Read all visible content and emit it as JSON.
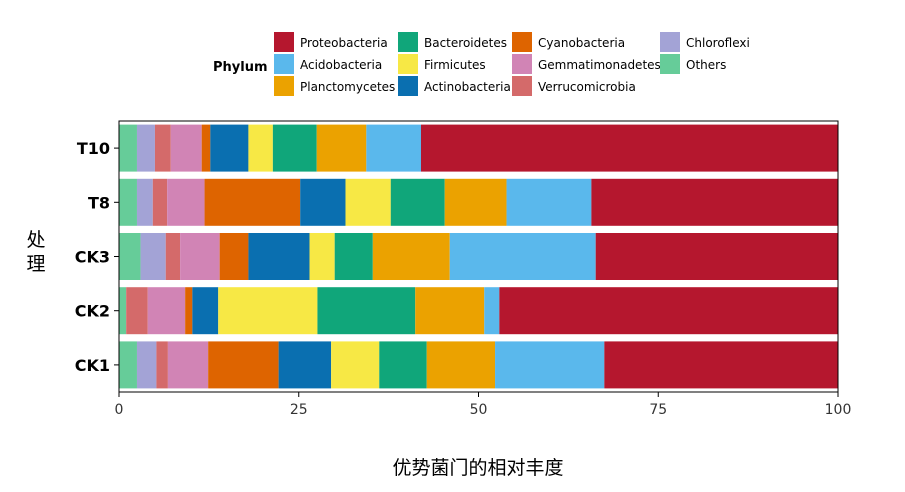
{
  "chart_data": {
    "type": "bar",
    "orientation": "horizontal",
    "stacked": true,
    "xlabel": "优势菌门的相对丰度",
    "ylabel": "处理",
    "xlim": [
      0,
      100
    ],
    "xticks": [
      0,
      25,
      50,
      75,
      100
    ],
    "legend_title": "Phylum",
    "legend_position": "top",
    "grid": false,
    "categories": [
      "T10",
      "T8",
      "CK3",
      "CK2",
      "CK1"
    ],
    "series": [
      {
        "name": "Others",
        "color": "#66cc99",
        "values": [
          2.5,
          2.5,
          3.0,
          1.0,
          2.5
        ]
      },
      {
        "name": "Chloroflexi",
        "color": "#a3a3d6",
        "values": [
          2.5,
          2.2,
          3.5,
          0.0,
          2.7
        ]
      },
      {
        "name": "Verrucomicrobia",
        "color": "#d46a6a",
        "values": [
          2.2,
          2.0,
          2.0,
          3.0,
          1.6
        ]
      },
      {
        "name": "Gemmatimonadetes",
        "color": "#d184b5",
        "values": [
          4.3,
          5.2,
          5.5,
          5.2,
          5.6
        ]
      },
      {
        "name": "Cyanobacteria",
        "color": "#de6400",
        "values": [
          1.2,
          13.3,
          4.0,
          1.0,
          9.8
        ]
      },
      {
        "name": "Actinobacteria",
        "color": "#0a6fb0",
        "values": [
          5.3,
          6.3,
          8.5,
          3.6,
          7.3
        ]
      },
      {
        "name": "Firmicutes",
        "color": "#f7e845",
        "values": [
          3.4,
          6.3,
          3.5,
          13.8,
          6.7
        ]
      },
      {
        "name": "Bacteroidetes",
        "color": "#10a67a",
        "values": [
          6.1,
          7.5,
          5.3,
          13.6,
          6.6
        ]
      },
      {
        "name": "Planctomycetes",
        "color": "#eba200",
        "values": [
          6.9,
          8.6,
          10.7,
          9.6,
          9.5
        ]
      },
      {
        "name": "Acidobacteria",
        "color": "#5ab8ec",
        "values": [
          7.6,
          11.8,
          20.3,
          2.1,
          15.2
        ]
      },
      {
        "name": "Proteobacteria",
        "color": "#b5172e",
        "values": [
          58.0,
          34.3,
          33.7,
          47.1,
          32.5
        ]
      }
    ],
    "legend_order": [
      "Proteobacteria",
      "Acidobacteria",
      "Planctomycetes",
      "Bacteroidetes",
      "Firmicutes",
      "Actinobacteria",
      "Cyanobacteria",
      "Gemmatimonadetes",
      "Verrucomicrobia",
      "Chloroflexi",
      "Others"
    ]
  }
}
